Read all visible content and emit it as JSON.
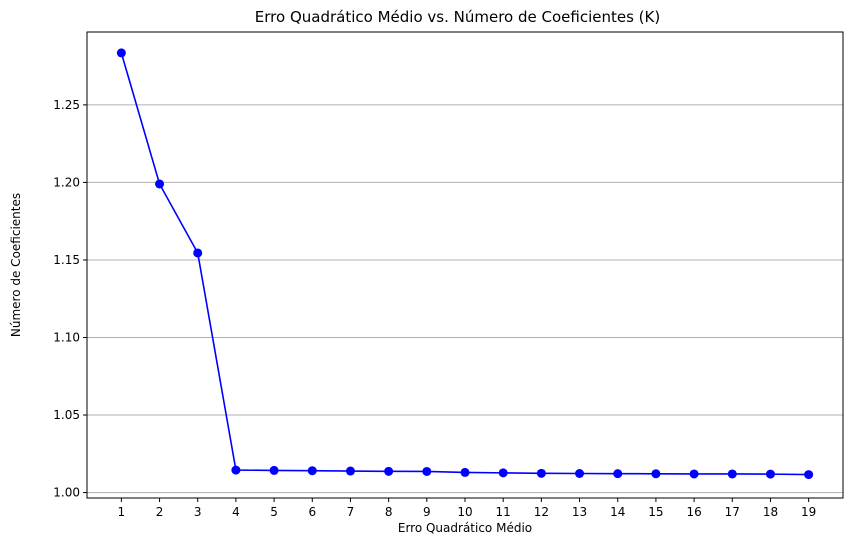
{
  "chart_data": {
    "type": "line",
    "title": "Erro Quadrático Médio vs. Número de Coeficientes (K)",
    "xlabel": "Erro Quadrático Médio",
    "ylabel": "Número de Coeficientes",
    "x": [
      1,
      2,
      3,
      4,
      5,
      6,
      7,
      8,
      9,
      10,
      11,
      12,
      13,
      14,
      15,
      16,
      17,
      18,
      19
    ],
    "series": [
      {
        "values": [
          1.2835,
          1.199,
          1.1545,
          1.0145,
          1.0143,
          1.0141,
          1.0139,
          1.0137,
          1.0136,
          1.013,
          1.0127,
          1.0124,
          1.0123,
          1.0122,
          1.0121,
          1.012,
          1.012,
          1.0119,
          1.0116
        ],
        "color": "#0000ff",
        "marker": "circle"
      }
    ],
    "xticks": [
      1,
      2,
      3,
      4,
      5,
      6,
      7,
      8,
      9,
      10,
      11,
      12,
      13,
      14,
      15,
      16,
      17,
      18,
      19
    ],
    "yticks": [
      "1.00",
      "1.05",
      "1.10",
      "1.15",
      "1.20",
      "1.25"
    ],
    "xlim": [
      0.1,
      19.9
    ],
    "ylim": [
      0.9965,
      1.297
    ],
    "grid": "y-axis only",
    "grid_color": "#b0b0b0"
  }
}
